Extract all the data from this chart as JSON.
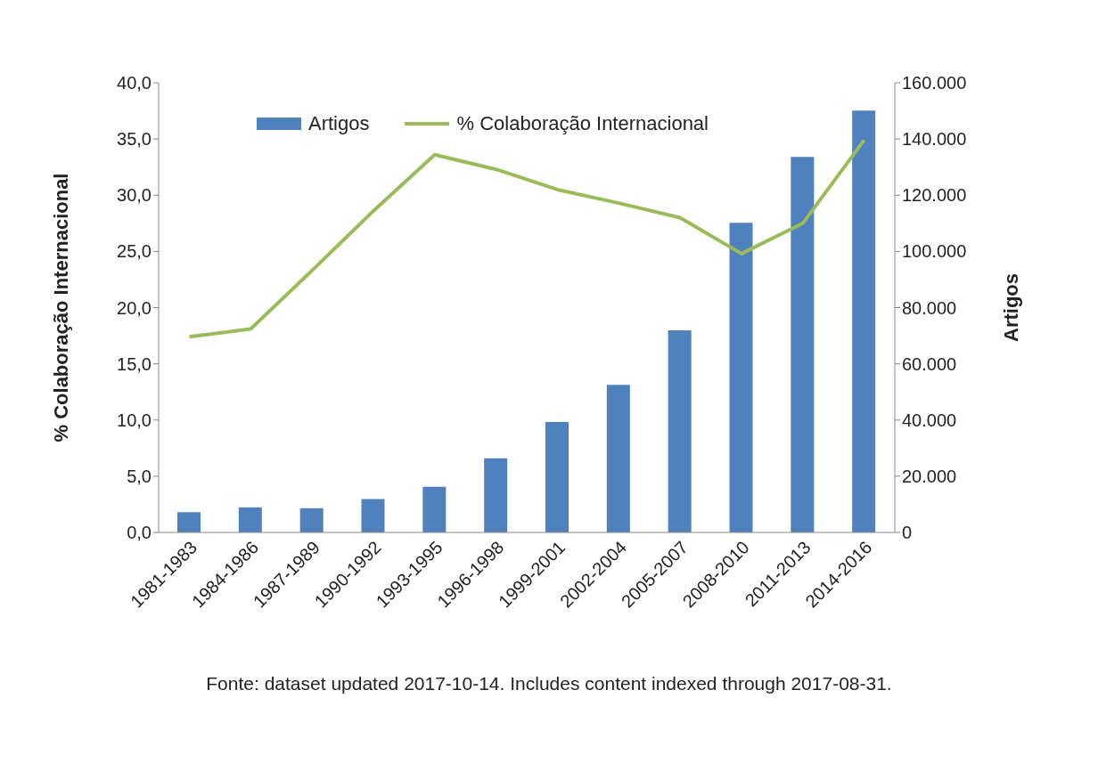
{
  "chart_data": {
    "type": "bar",
    "categories": [
      "1981-1983",
      "1984-1986",
      "1987-1989",
      "1990-1992",
      "1993-1995",
      "1996-1998",
      "1999-2001",
      "2002-2004",
      "2005-2007",
      "2008-2010",
      "2011-2013",
      "2014-2016"
    ],
    "series": [
      {
        "name": "Artigos",
        "axis": "y2",
        "color": "#4f81bd",
        "values": [
          7200,
          8900,
          8600,
          11900,
          16200,
          26400,
          39300,
          52500,
          71900,
          110200,
          133600,
          150100
        ]
      },
      {
        "name": "% Colaboração Internacional",
        "type": "line",
        "axis": "y",
        "color": "#9bbb59",
        "values": [
          17.4,
          18.1,
          23.3,
          28.6,
          33.6,
          32.3,
          30.5,
          29.3,
          28.0,
          24.8,
          27.5,
          34.9
        ]
      }
    ],
    "ylabel": "% Colaboração Internacional",
    "y2label": "Artigos",
    "ylim": [
      0,
      40
    ],
    "yticks": [
      {
        "value": 0,
        "label": "0,0"
      },
      {
        "value": 5,
        "label": "5,0"
      },
      {
        "value": 10,
        "label": "10,0"
      },
      {
        "value": 15,
        "label": "15,0"
      },
      {
        "value": 20,
        "label": "20,0"
      },
      {
        "value": 25,
        "label": "25,0"
      },
      {
        "value": 30,
        "label": "30,0"
      },
      {
        "value": 35,
        "label": "35,0"
      },
      {
        "value": 40,
        "label": "40,0"
      }
    ],
    "y2lim": [
      0,
      160000
    ],
    "y2ticks": [
      0,
      {
        "value": 20000,
        "label": "20.000"
      },
      {
        "value": 40000,
        "label": "40.000"
      },
      {
        "value": 60000,
        "label": "60.000"
      },
      {
        "value": 80000,
        "label": "80.000"
      },
      {
        "value": 100000,
        "label": "100.000"
      },
      {
        "value": 120000,
        "label": "120.000"
      },
      {
        "value": 140000,
        "label": "140.000"
      },
      {
        "value": 160000,
        "label": "160.000"
      }
    ],
    "legend": "top",
    "grid": false,
    "marker": "none",
    "line_style": "solid",
    "annotations": [
      "Fonte: dataset updated 2017-10-14. Includes content indexed through 2017-08-31."
    ]
  }
}
